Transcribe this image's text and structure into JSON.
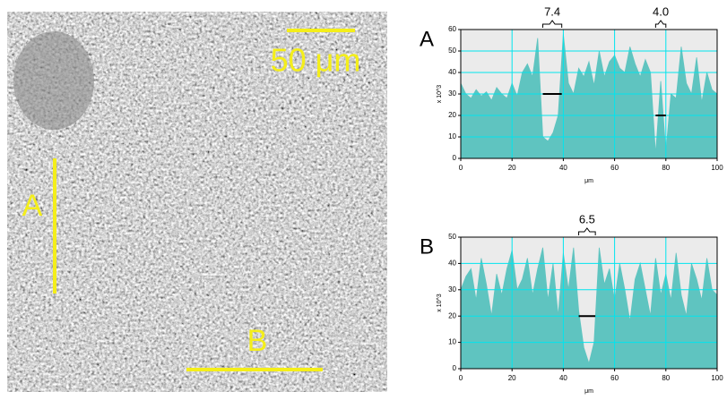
{
  "image": {
    "scale_bar": "50 μm",
    "line_labels": [
      "A",
      "B"
    ]
  },
  "chart_data": [
    {
      "type": "area",
      "title": "A",
      "x_label": "μm",
      "y_label": "x 10^3",
      "color": "#5fc4c0",
      "grid": true,
      "grid_color": "#00e5ee",
      "xlim": [
        0,
        100
      ],
      "xticks": [
        0,
        20,
        40,
        60,
        80,
        100
      ],
      "ylim": [
        0,
        60
      ],
      "yticks": [
        0,
        10,
        20,
        30,
        40,
        50,
        60
      ],
      "x": [
        0,
        2,
        4,
        6,
        8,
        10,
        12,
        14,
        16,
        18,
        20,
        22,
        24,
        26,
        28,
        30,
        32,
        34,
        36,
        38,
        40,
        42,
        44,
        46,
        48,
        50,
        52,
        54,
        56,
        58,
        60,
        62,
        64,
        66,
        68,
        70,
        72,
        74,
        76,
        78,
        80,
        82,
        84,
        86,
        88,
        90,
        92,
        94,
        96,
        98,
        100
      ],
      "values": [
        35,
        30,
        28,
        32,
        29,
        31,
        27,
        33,
        30,
        28,
        35,
        29,
        40,
        44,
        38,
        56,
        10,
        8,
        12,
        20,
        58,
        35,
        30,
        42,
        38,
        45,
        34,
        50,
        38,
        45,
        48,
        42,
        40,
        52,
        44,
        38,
        46,
        40,
        2,
        36,
        3,
        30,
        28,
        52,
        35,
        30,
        47,
        26,
        40,
        32,
        30
      ],
      "annotations": [
        {
          "label": "7.4",
          "start": 32,
          "end": 39.4,
          "level": 30
        },
        {
          "label": "4.0",
          "start": 76,
          "end": 80,
          "level": 20
        }
      ]
    },
    {
      "type": "area",
      "title": "B",
      "x_label": "μm",
      "y_label": "x 10^3",
      "color": "#5fc4c0",
      "grid": true,
      "grid_color": "#00e5ee",
      "xlim": [
        0,
        100
      ],
      "xticks": [
        0,
        20,
        40,
        60,
        80,
        100
      ],
      "ylim": [
        0,
        50
      ],
      "yticks": [
        0,
        10,
        20,
        30,
        40,
        50
      ],
      "x": [
        0,
        2,
        4,
        6,
        8,
        10,
        12,
        14,
        16,
        18,
        20,
        22,
        24,
        26,
        28,
        30,
        32,
        34,
        36,
        38,
        40,
        42,
        44,
        46,
        48,
        50,
        52,
        54,
        56,
        58,
        60,
        62,
        64,
        66,
        68,
        70,
        72,
        74,
        76,
        78,
        80,
        82,
        84,
        86,
        88,
        90,
        92,
        94,
        96,
        98,
        100
      ],
      "values": [
        30,
        35,
        38,
        26,
        42,
        32,
        20,
        36,
        28,
        38,
        45,
        30,
        34,
        42,
        28,
        38,
        46,
        26,
        40,
        20,
        44,
        30,
        46,
        22,
        8,
        2,
        10,
        46,
        32,
        38,
        26,
        40,
        30,
        18,
        34,
        40,
        30,
        20,
        42,
        28,
        36,
        26,
        44,
        28,
        20,
        40,
        34,
        26,
        42,
        30,
        28
      ],
      "annotations": [
        {
          "label": "6.5",
          "start": 46,
          "end": 52.5,
          "level": 20
        }
      ]
    }
  ]
}
